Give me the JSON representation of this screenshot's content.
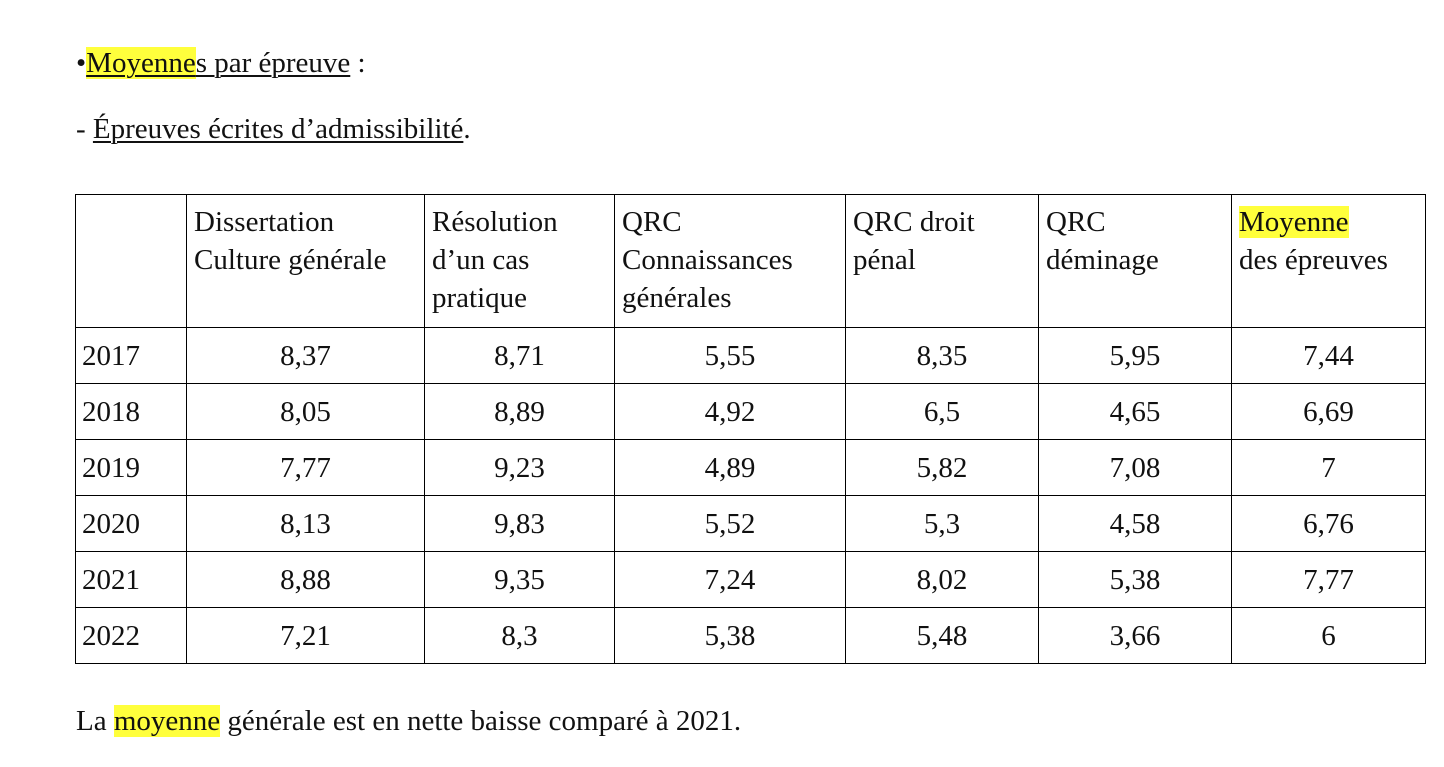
{
  "heading": {
    "bullet": "•",
    "highlighted": "Moyenne",
    "underlined_rest": "s par épreuve",
    "tail": " :"
  },
  "subheading": {
    "prefix": "- ",
    "underlined": "Épreuves écrites d’admissibilité",
    "tail": "."
  },
  "table": {
    "corner": "",
    "columns": [
      "Dissertation Culture générale",
      "Résolution d’un cas pratique",
      "QRC Connaissances générales",
      "QRC droit pénal",
      "QRC déminage"
    ],
    "last_column": {
      "highlighted": "Moyenne",
      "rest": "des épreuves"
    },
    "rows": [
      {
        "year": "2017",
        "values": [
          "8,37",
          "8,71",
          "5,55",
          "8,35",
          "5,95",
          "7,44"
        ]
      },
      {
        "year": "2018",
        "values": [
          "8,05",
          "8,89",
          "4,92",
          "6,5",
          "4,65",
          "6,69"
        ]
      },
      {
        "year": "2019",
        "values": [
          "7,77",
          "9,23",
          "4,89",
          "5,82",
          "7,08",
          "7"
        ]
      },
      {
        "year": "2020",
        "values": [
          "8,13",
          "9,83",
          "5,52",
          "5,3",
          "4,58",
          "6,76"
        ]
      },
      {
        "year": "2021",
        "values": [
          "8,88",
          "9,35",
          "7,24",
          "8,02",
          "5,38",
          "7,77"
        ]
      },
      {
        "year": "2022",
        "values": [
          "7,21",
          "8,3",
          "5,38",
          "5,48",
          "3,66",
          "6"
        ]
      }
    ]
  },
  "footer": {
    "prefix": "La ",
    "highlighted": "moyenne",
    "rest": " générale est en nette baisse comparé à 2021."
  },
  "colors": {
    "highlight": "#ffff3c",
    "text": "#111111",
    "border": "#000000"
  }
}
